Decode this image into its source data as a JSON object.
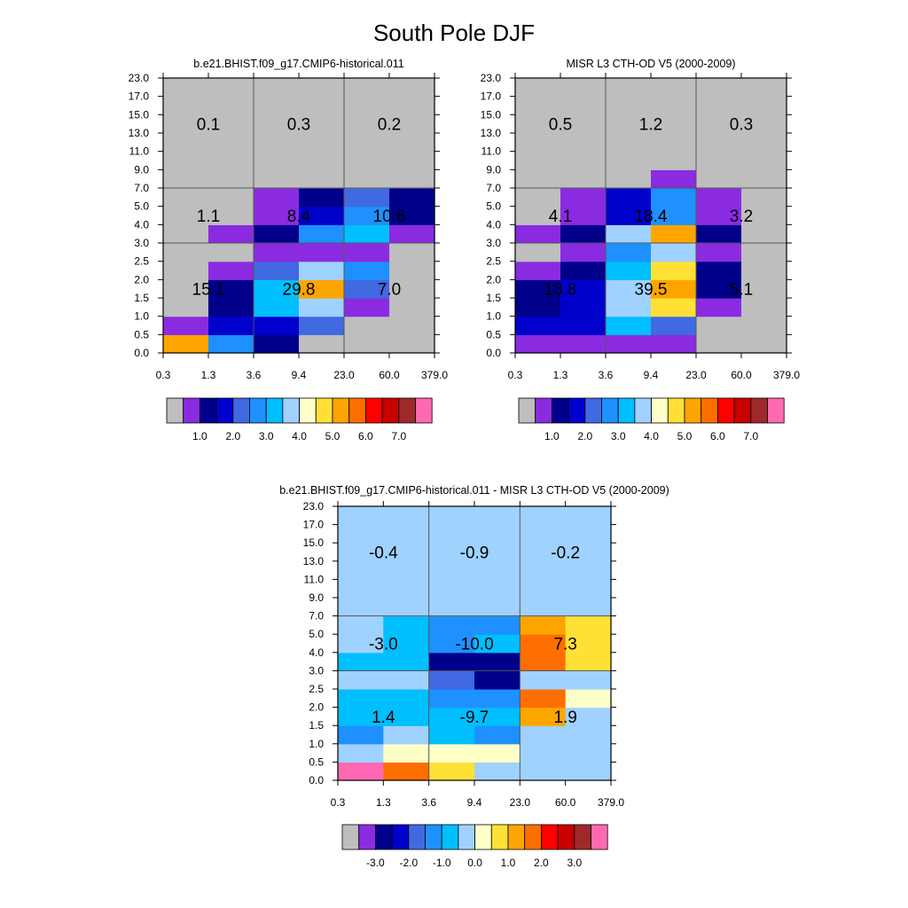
{
  "title": "South Pole DJF",
  "x_ticks": [
    "0.3",
    "1.3",
    "3.6",
    "9.4",
    "23.0",
    "60.0",
    "379.0"
  ],
  "y_ticks": [
    "0.0",
    "0.5",
    "1.0",
    "1.5",
    "2.0",
    "2.5",
    "3.0",
    "4.0",
    "5.0",
    "7.0",
    "9.0",
    "11.0",
    "13.0",
    "15.0",
    "17.0",
    "23.0"
  ],
  "palette": [
    "#bebebe",
    "#8a2be2",
    "#00008b",
    "#0000cd",
    "#4169e1",
    "#1e90ff",
    "#00bfff",
    "#a0d2ff",
    "#ffffc8",
    "#ffe135",
    "#ffa500",
    "#ff6e00",
    "#ff0000",
    "#c80000",
    "#a02828",
    "#ff69b4"
  ],
  "chart_data": [
    {
      "type": "heatmap",
      "title": "b.e21.BHIST.f09_g17.CMIP6-historical.011",
      "colorbar_labels": [
        "1.0",
        "2.0",
        "3.0",
        "4.0",
        "5.0",
        "6.0",
        "7.0"
      ],
      "cell_color_index": [
        [
          10,
          5,
          2,
          0,
          0,
          0
        ],
        [
          1,
          3,
          3,
          4,
          0,
          0
        ],
        [
          0,
          2,
          6,
          7,
          1,
          0
        ],
        [
          0,
          2,
          6,
          10,
          4,
          0
        ],
        [
          0,
          1,
          4,
          7,
          5,
          0
        ],
        [
          0,
          0,
          1,
          1,
          1,
          0
        ],
        [
          0,
          1,
          2,
          5,
          6,
          1
        ],
        [
          0,
          0,
          1,
          3,
          5,
          2
        ],
        [
          0,
          0,
          1,
          2,
          4,
          2
        ],
        [
          0,
          0,
          0,
          0,
          0,
          0
        ],
        [
          0,
          0,
          0,
          0,
          0,
          0
        ],
        [
          0,
          0,
          0,
          0,
          0,
          0
        ],
        [
          0,
          0,
          0,
          0,
          0,
          0
        ],
        [
          0,
          0,
          0,
          0,
          0,
          0
        ],
        [
          0,
          0,
          0,
          0,
          0,
          0
        ]
      ],
      "region_values": [
        {
          "label": "15.1",
          "col": 0,
          "row": "low"
        },
        {
          "label": "29.8",
          "col": 1,
          "row": "mid_low"
        },
        {
          "label": "7.0",
          "col": 2,
          "row": "low"
        },
        {
          "label": "1.1",
          "col": 0,
          "row": "mid"
        },
        {
          "label": "8.4",
          "col": 1,
          "row": "mid"
        },
        {
          "label": "10.6",
          "col": 2,
          "row": "mid"
        },
        {
          "label": "0.1",
          "col": 0,
          "row": "high"
        },
        {
          "label": "0.3",
          "col": 1,
          "row": "high"
        },
        {
          "label": "0.2",
          "col": 2,
          "row": "high"
        }
      ]
    },
    {
      "type": "heatmap",
      "title": "MISR L3 CTH-OD V5 (2000-2009)",
      "colorbar_labels": [
        "1.0",
        "2.0",
        "3.0",
        "4.0",
        "5.0",
        "6.0",
        "7.0"
      ],
      "cell_color_index": [
        [
          1,
          1,
          1,
          1,
          0,
          0
        ],
        [
          3,
          3,
          6,
          4,
          0,
          0
        ],
        [
          2,
          3,
          7,
          9,
          1,
          0
        ],
        [
          2,
          3,
          7,
          10,
          2,
          0
        ],
        [
          1,
          2,
          6,
          9,
          2,
          0
        ],
        [
          0,
          1,
          5,
          7,
          1,
          0
        ],
        [
          1,
          2,
          7,
          10,
          2,
          0
        ],
        [
          0,
          1,
          3,
          5,
          1,
          0
        ],
        [
          0,
          1,
          3,
          5,
          1,
          0
        ],
        [
          0,
          0,
          0,
          1,
          0,
          0
        ],
        [
          0,
          0,
          0,
          0,
          0,
          0
        ],
        [
          0,
          0,
          0,
          0,
          0,
          0
        ],
        [
          0,
          0,
          0,
          0,
          0,
          0
        ],
        [
          0,
          0,
          0,
          0,
          0,
          0
        ],
        [
          0,
          0,
          0,
          0,
          0,
          0
        ]
      ],
      "region_values": [
        {
          "label": "13.8",
          "col": 0,
          "row": "low"
        },
        {
          "label": "39.5",
          "col": 1,
          "row": "low"
        },
        {
          "label": "5.1",
          "col": 2,
          "row": "low"
        },
        {
          "label": "4.1",
          "col": 0,
          "row": "mid"
        },
        {
          "label": "18.4",
          "col": 1,
          "row": "mid"
        },
        {
          "label": "3.2",
          "col": 2,
          "row": "mid"
        },
        {
          "label": "0.5",
          "col": 0,
          "row": "high"
        },
        {
          "label": "1.2",
          "col": 1,
          "row": "high"
        },
        {
          "label": "0.3",
          "col": 2,
          "row": "high"
        }
      ]
    },
    {
      "type": "heatmap",
      "title": "b.e21.BHIST.f09_g17.CMIP6-historical.011 - MISR L3 CTH-OD V5 (2000-2009)",
      "colorbar_labels": [
        "-3.0",
        "-2.0",
        "-1.0",
        "0.0",
        "1.0",
        "2.0",
        "3.0"
      ],
      "cell_color_index": [
        [
          15,
          11,
          9,
          7,
          7,
          7
        ],
        [
          7,
          8,
          8,
          8,
          7,
          7
        ],
        [
          5,
          7,
          6,
          5,
          7,
          7
        ],
        [
          6,
          6,
          6,
          6,
          10,
          7
        ],
        [
          6,
          6,
          5,
          5,
          11,
          8
        ],
        [
          7,
          7,
          4,
          2,
          7,
          7
        ],
        [
          6,
          6,
          2,
          2,
          11,
          9
        ],
        [
          7,
          6,
          5,
          6,
          11,
          9
        ],
        [
          7,
          6,
          5,
          5,
          10,
          9
        ],
        [
          7,
          7,
          7,
          7,
          7,
          7
        ],
        [
          7,
          7,
          7,
          7,
          7,
          7
        ],
        [
          7,
          7,
          7,
          7,
          7,
          7
        ],
        [
          7,
          7,
          7,
          7,
          7,
          7
        ],
        [
          7,
          7,
          7,
          7,
          7,
          7
        ],
        [
          7,
          7,
          7,
          7,
          7,
          7
        ]
      ],
      "region_values": [
        {
          "label": "1.4",
          "col": 0,
          "row": "low"
        },
        {
          "label": "-9.7",
          "col": 1,
          "row": "low"
        },
        {
          "label": "1.9",
          "col": 2,
          "row": "low"
        },
        {
          "label": "-3.0",
          "col": 0,
          "row": "mid"
        },
        {
          "label": "-10.0",
          "col": 1,
          "row": "mid"
        },
        {
          "label": "7.3",
          "col": 2,
          "row": "mid"
        },
        {
          "label": "-0.4",
          "col": 0,
          "row": "high"
        },
        {
          "label": "-0.9",
          "col": 1,
          "row": "high"
        },
        {
          "label": "-0.2",
          "col": 2,
          "row": "high"
        }
      ]
    }
  ]
}
